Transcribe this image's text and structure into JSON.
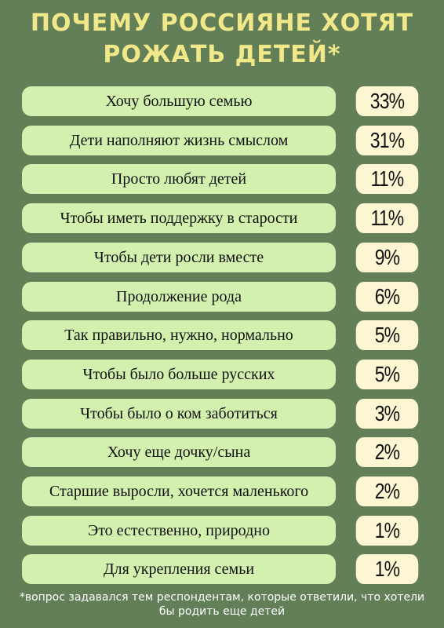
{
  "title": {
    "line1": "ПОЧЕМУ РОССИЯНЕ ХОТЯТ",
    "line2": "РОЖАТЬ ДЕТЕЙ*"
  },
  "chart_data": {
    "type": "table",
    "categories": [
      "Хочу большую семью",
      "Дети наполняют жизнь смыслом",
      "Просто любят детей",
      "Чтобы иметь поддержку в старости",
      "Чтобы дети росли вместе",
      "Продолжение рода",
      "Так правильно, нужно, нормально",
      "Чтобы было больше русских",
      "Чтобы было о ком заботиться",
      "Хочу еще дочку/сына",
      "Старшие выросли, хочется маленького",
      "Это естественно, природно",
      "Для укрепления семьи"
    ],
    "values": [
      33,
      31,
      11,
      11,
      9,
      6,
      5,
      5,
      3,
      2,
      2,
      1,
      1
    ],
    "value_labels": [
      "33%",
      "31%",
      "11%",
      "11%",
      "9%",
      "6%",
      "5%",
      "5%",
      "3%",
      "2%",
      "2%",
      "1%",
      "1%"
    ]
  },
  "footnote": "*вопрос задавался тем респондентам, которые ответили, что хотели бы родить еще детей",
  "colors": {
    "background": "#627f58",
    "title": "#f1e88a",
    "label_pill": "#d3f0af",
    "value_pill": "#fcf6d2"
  }
}
